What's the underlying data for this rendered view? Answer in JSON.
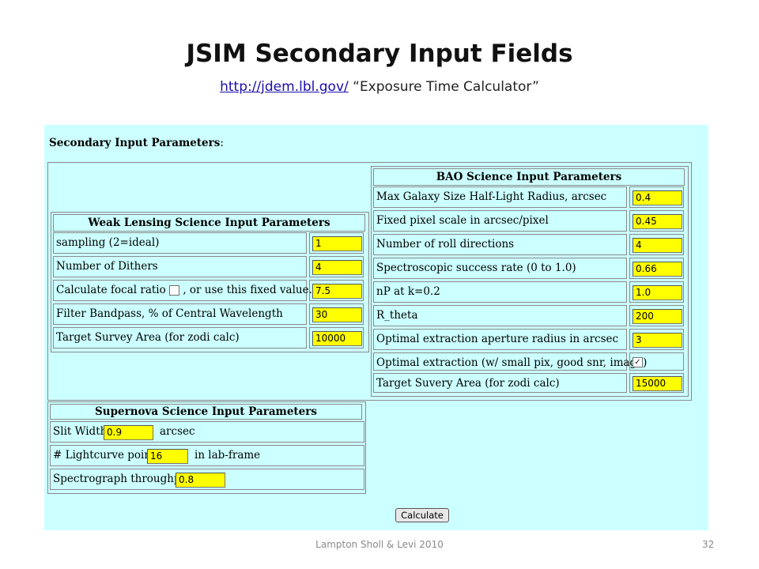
{
  "slide": {
    "title": "JSIM Secondary Input Fields",
    "link": " http://jdem.lbl.gov/",
    "subtitle_rest": " “Exposure Time Calculator”",
    "footer": "Lampton Sholl & Levi 2010",
    "page_number": "32"
  },
  "form": {
    "heading": "Secondary Input Parameters",
    "heading_colon": ":",
    "weak_lensing": {
      "title": "Weak Lensing Science Input Parameters",
      "rows": [
        {
          "label": "sampling (2=ideal)",
          "value": "1"
        },
        {
          "label": "Number of Dithers",
          "value": "4"
        },
        {
          "label_pre": "Calculate focal ratio",
          "label_post": ", or use this fixed value...",
          "value": "7.5",
          "checked": false
        },
        {
          "label": "Filter Bandpass, % of Central Wavelength",
          "value": "30"
        },
        {
          "label": "Target Survey Area (for zodi calc)",
          "value": "10000"
        }
      ]
    },
    "bao": {
      "title": "BAO Science Input Parameters",
      "rows": [
        {
          "label": "Max Galaxy Size Half-Light Radius, arcsec",
          "value": "0.4"
        },
        {
          "label": "Fixed pixel scale in arcsec/pixel",
          "value": "0.45"
        },
        {
          "label": "Number of roll directions",
          "value": "4"
        },
        {
          "label": "Spectroscopic success rate (0 to 1.0)",
          "value": "0.66"
        },
        {
          "label": "nP at k=0.2",
          "value": "1.0"
        },
        {
          "label": "R_theta",
          "value": "200"
        },
        {
          "label": "Optimal extraction aperture radius in arcsec",
          "value": "3"
        },
        {
          "label": "Optimal extraction (w/ small pix, good snr, image)",
          "checked": true,
          "check_glyph": "✓"
        },
        {
          "label": "Target Suvery Area (for zodi calc)",
          "value": "15000"
        }
      ]
    },
    "supernova": {
      "title": "Supernova Science Input Parameters",
      "rows": [
        {
          "label": "Slit Width",
          "value": "0.9",
          "suffix": "arcsec"
        },
        {
          "label": "# Lightcurve points",
          "value": "16",
          "suffix": "in lab-frame"
        },
        {
          "label": "Spectrograph throughput",
          "value": "0.8"
        }
      ]
    },
    "calculate_label": "Calculate"
  },
  "colors": {
    "panel_background": "#ccffff",
    "field_background": "#ffff00",
    "link": "#1a0dab"
  }
}
